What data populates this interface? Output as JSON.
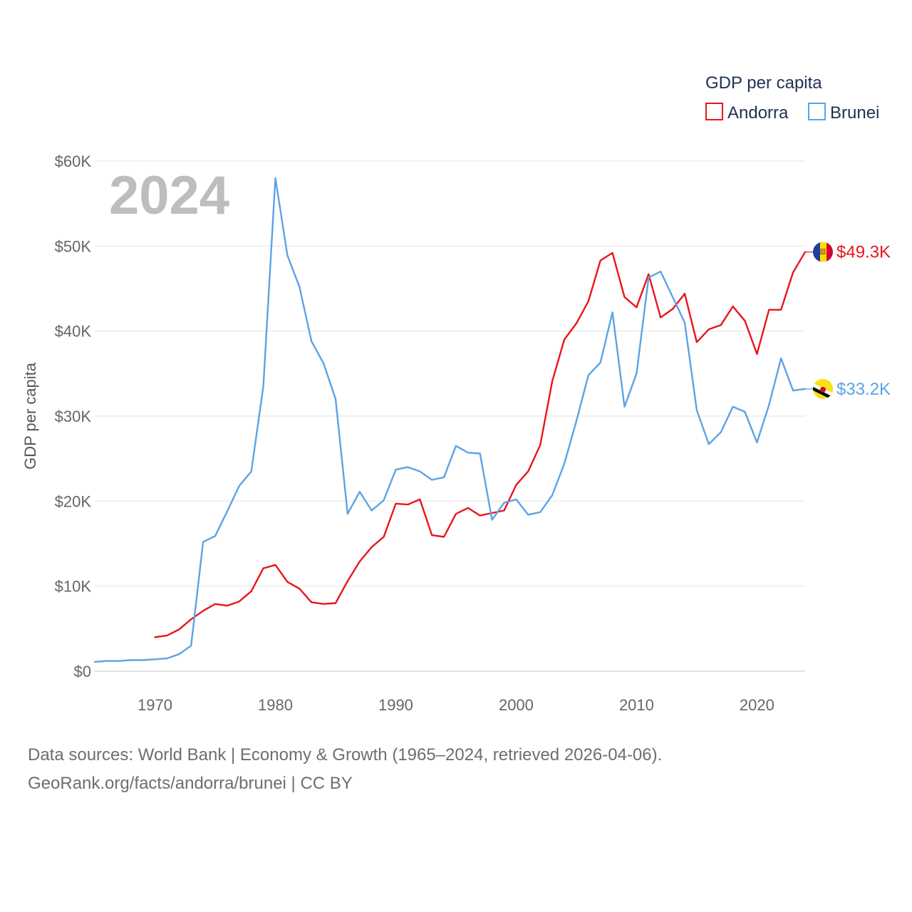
{
  "chart_data": {
    "type": "line",
    "title": "",
    "legend_title": "GDP per capita",
    "ylabel": "GDP per capita",
    "xlabel": "",
    "current_year_label": "2024",
    "xlim": [
      1965,
      2024
    ],
    "ylim": [
      0,
      60000
    ],
    "x_ticks": [
      1970,
      1980,
      1990,
      2000,
      2010,
      2020
    ],
    "x_tick_labels": [
      "1970",
      "1980",
      "1990",
      "2000",
      "2010",
      "2020"
    ],
    "y_ticks": [
      0,
      10000,
      20000,
      30000,
      40000,
      50000,
      60000
    ],
    "y_tick_labels": [
      "$0",
      "$10K",
      "$20K",
      "$30K",
      "$40K",
      "$50K",
      "$60K"
    ],
    "grid": true,
    "legend_position": "top-right",
    "series": [
      {
        "name": "Andorra",
        "color": "#e8161b",
        "flag": "andorra-flag-icon",
        "end_label": "$49.3K",
        "x": [
          1970,
          1971,
          1972,
          1973,
          1974,
          1975,
          1976,
          1977,
          1978,
          1979,
          1980,
          1981,
          1982,
          1983,
          1984,
          1985,
          1986,
          1987,
          1988,
          1989,
          1990,
          1991,
          1992,
          1993,
          1994,
          1995,
          1996,
          1997,
          1998,
          1999,
          2000,
          2001,
          2002,
          2003,
          2004,
          2005,
          2006,
          2007,
          2008,
          2009,
          2010,
          2011,
          2012,
          2013,
          2014,
          2015,
          2016,
          2017,
          2018,
          2019,
          2020,
          2021,
          2022,
          2023,
          2024
        ],
        "values": [
          4000,
          4200,
          4900,
          6100,
          7100,
          7900,
          7700,
          8200,
          9400,
          12100,
          12500,
          10500,
          9700,
          8100,
          7900,
          8000,
          10600,
          12900,
          14600,
          15800,
          19700,
          19600,
          20200,
          16000,
          15800,
          18500,
          19200,
          18300,
          18600,
          18900,
          21900,
          23500,
          26600,
          34100,
          39000,
          40900,
          43500,
          48300,
          49200,
          44000,
          42800,
          46700,
          41600,
          42600,
          44400,
          38700,
          40200,
          40700,
          42900,
          41200,
          37300,
          42500,
          42500,
          46900,
          49300
        ]
      },
      {
        "name": "Brunei",
        "color": "#5ba3e6",
        "flag": "brunei-flag-icon",
        "end_label": "$33.2K",
        "x": [
          1965,
          1966,
          1967,
          1968,
          1969,
          1970,
          1971,
          1972,
          1973,
          1974,
          1975,
          1976,
          1977,
          1978,
          1979,
          1980,
          1981,
          1982,
          1983,
          1984,
          1985,
          1986,
          1987,
          1988,
          1989,
          1990,
          1991,
          1992,
          1993,
          1994,
          1995,
          1996,
          1997,
          1998,
          1999,
          2000,
          2001,
          2002,
          2003,
          2004,
          2005,
          2006,
          2007,
          2008,
          2009,
          2010,
          2011,
          2012,
          2013,
          2014,
          2015,
          2016,
          2017,
          2018,
          2019,
          2020,
          2021,
          2022,
          2023,
          2024
        ],
        "values": [
          1100,
          1200,
          1200,
          1300,
          1300,
          1400,
          1500,
          2000,
          3000,
          15200,
          15900,
          18800,
          21800,
          23500,
          33500,
          58000,
          48900,
          45200,
          38800,
          36200,
          32000,
          18500,
          21100,
          18900,
          20100,
          23700,
          24000,
          23500,
          22500,
          22800,
          26500,
          25700,
          25600,
          17800,
          19800,
          20200,
          18400,
          18700,
          20700,
          24400,
          29400,
          34800,
          36300,
          42200,
          31100,
          35000,
          46300,
          47000,
          44000,
          41000,
          30700,
          26700,
          28100,
          31100,
          30500,
          26900,
          31300,
          36800,
          33000,
          33200
        ]
      }
    ]
  },
  "footer": {
    "line1": "Data sources: World Bank | Economy & Growth (1965–2024, retrieved 2026-04-06).",
    "line2": "GeoRank.org/facts/andorra/brunei | CC BY"
  }
}
